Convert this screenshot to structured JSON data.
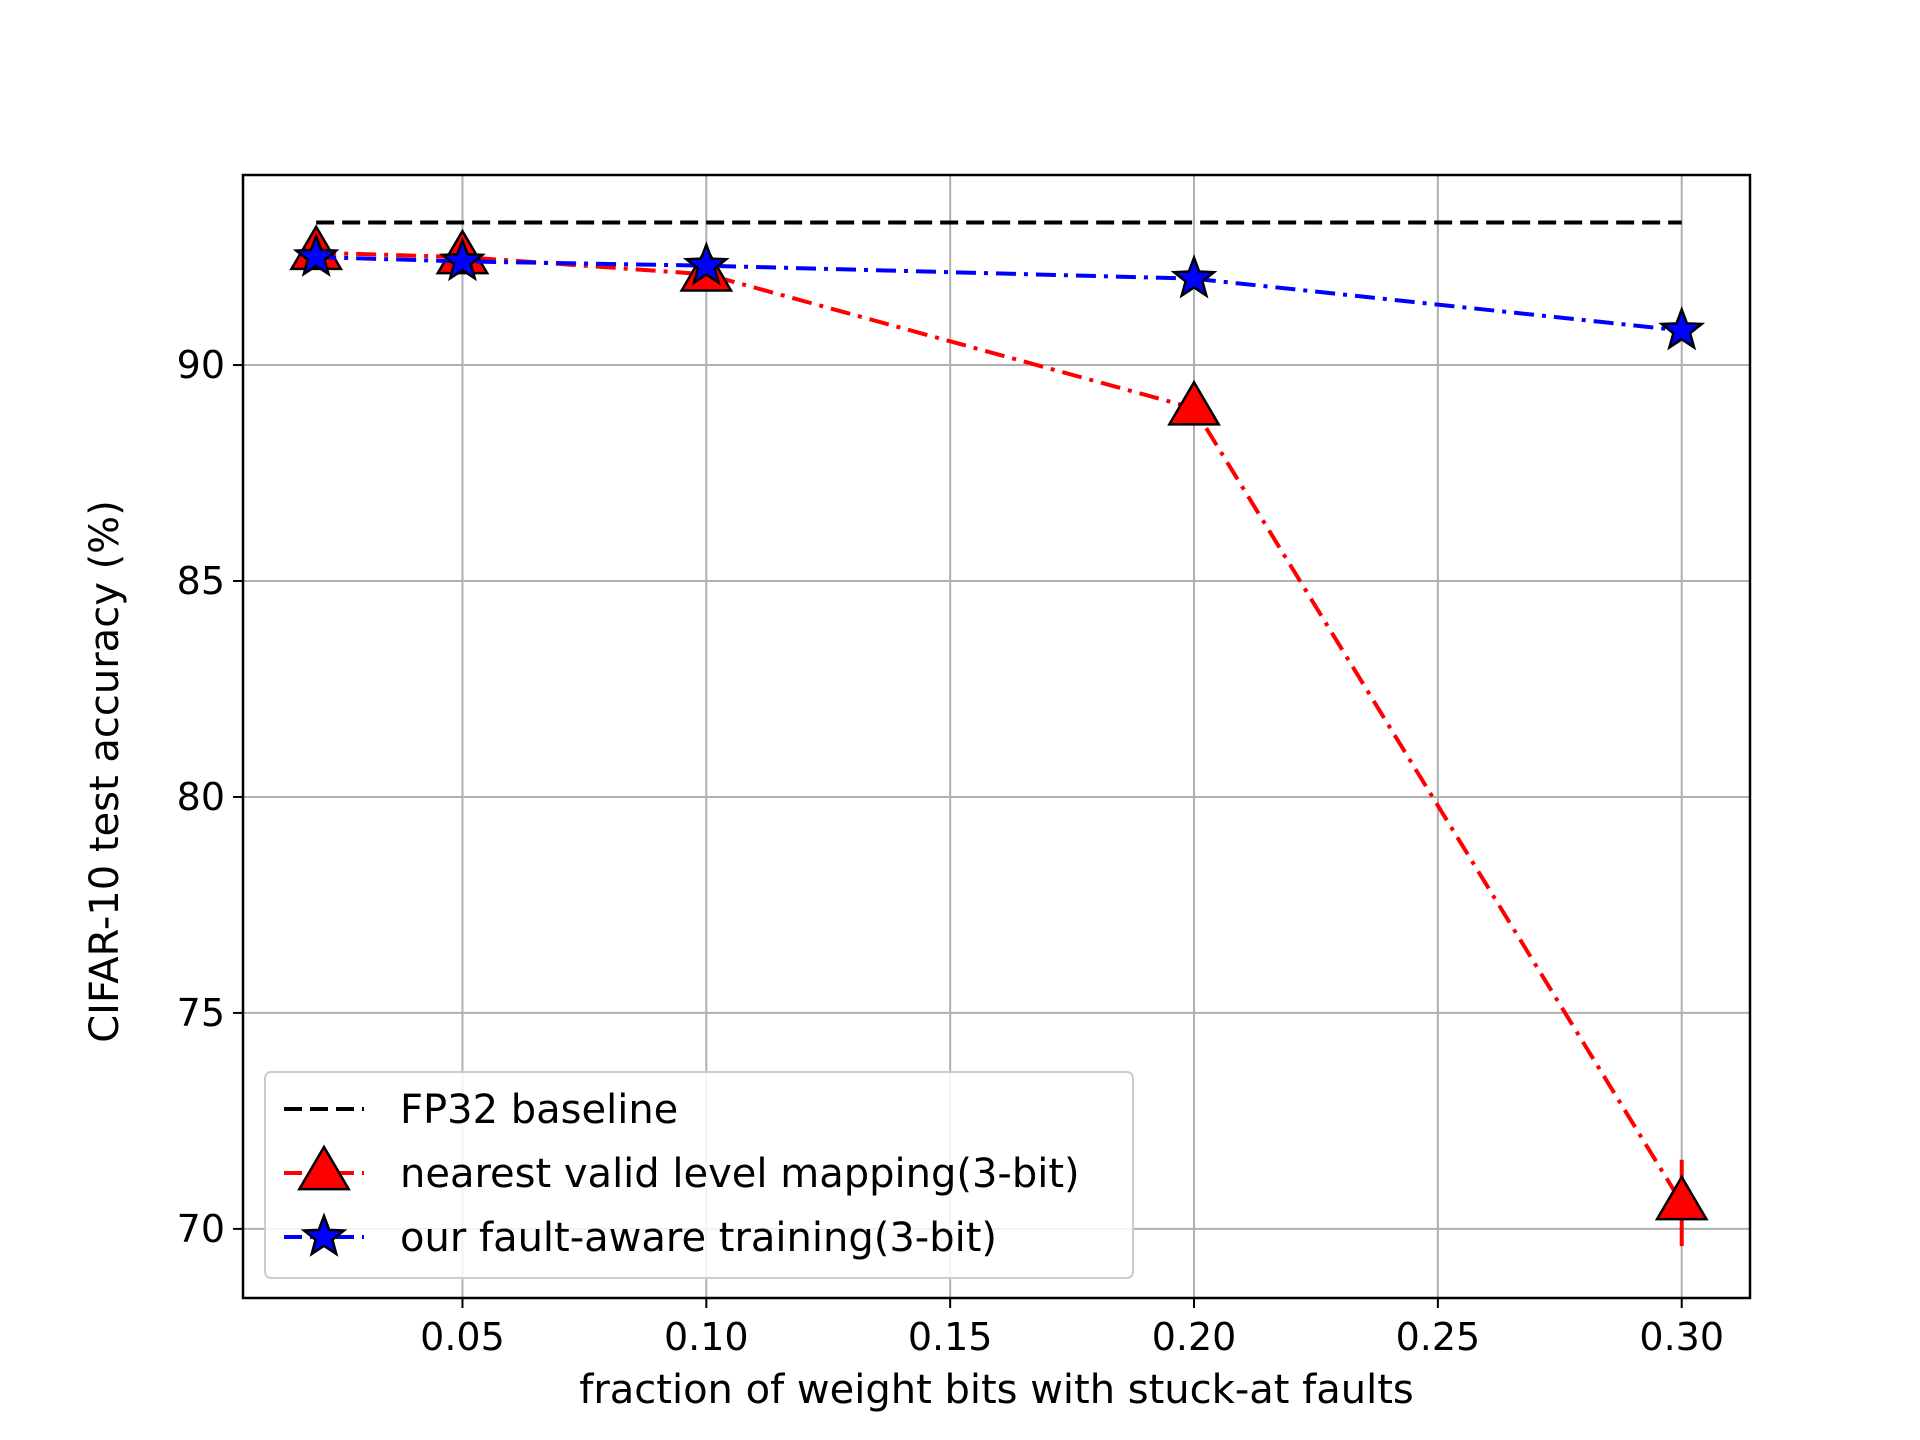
{
  "chart_data": {
    "type": "line",
    "title": "",
    "xlabel": "fraction of weight bits with stuck-at faults",
    "ylabel": "CIFAR-10 test accuracy (%)",
    "xlim": [
      0.005,
      0.314
    ],
    "ylim": [
      68.4,
      94.4
    ],
    "xticks": [
      0.05,
      0.1,
      0.15,
      0.2,
      0.25,
      0.3
    ],
    "xtick_labels": [
      "0.05",
      "0.10",
      "0.15",
      "0.20",
      "0.25",
      "0.30"
    ],
    "yticks": [
      70,
      75,
      80,
      85,
      90
    ],
    "ytick_labels": [
      "70",
      "75",
      "80",
      "85",
      "90"
    ],
    "grid": true,
    "legend_position": "lower-left",
    "series": [
      {
        "name": "FP32 baseline",
        "x": [
          0.02,
          0.3
        ],
        "y": [
          93.3,
          93.3
        ],
        "color": "#000000",
        "linestyle": "dashed",
        "marker": "none"
      },
      {
        "name": "nearest valid level mapping(3-bit)",
        "x": [
          0.02,
          0.05,
          0.1,
          0.2,
          0.3
        ],
        "y": [
          92.6,
          92.5,
          92.1,
          89.0,
          70.6
        ],
        "error": [
          0,
          0,
          0,
          0,
          1.0
        ],
        "color": "#ff0000",
        "linestyle": "dashdot",
        "marker": "triangle"
      },
      {
        "name": "our fault-aware training(3-bit)",
        "x": [
          0.02,
          0.05,
          0.1,
          0.2,
          0.3
        ],
        "y": [
          92.5,
          92.4,
          92.3,
          92.0,
          90.8
        ],
        "color": "#0000ff",
        "linestyle": "dashdot",
        "marker": "star"
      }
    ]
  }
}
